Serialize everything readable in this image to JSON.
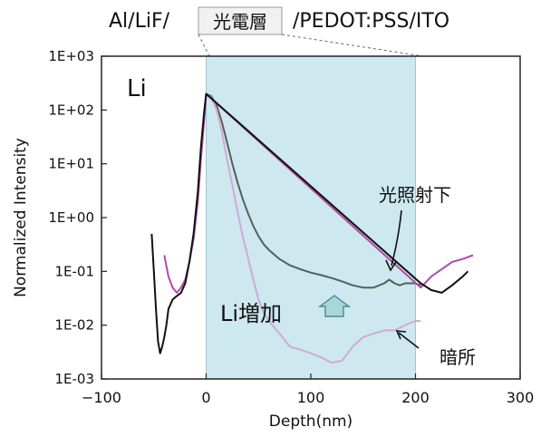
{
  "header": {
    "structure_prefix": "Al/LiF/",
    "active_layer": "光電層",
    "structure_suffix": "/PEDOT:PSS/ITO"
  },
  "chart_data": {
    "type": "line",
    "xlabel": "Depth(nm)",
    "ylabel": "Normalized Intensity",
    "xlim": [
      -100,
      300
    ],
    "ylim": [
      0.001,
      1000
    ],
    "yscale": "log",
    "x_ticks": [
      -100,
      0,
      100,
      200,
      300
    ],
    "y_ticks": [
      {
        "value": 1000,
        "label": "1E+03"
      },
      {
        "value": 100,
        "label": "1E+02"
      },
      {
        "value": 10,
        "label": "1E+01"
      },
      {
        "value": 1,
        "label": "1E+00"
      },
      {
        "value": 0.1,
        "label": "1E-01"
      },
      {
        "value": 0.01,
        "label": "1E-02"
      },
      {
        "value": 0.001,
        "label": "1E-03"
      }
    ],
    "element_label": "Li",
    "grid": false,
    "shaded_region": {
      "x": [
        0,
        200
      ],
      "color": "#cde8ef"
    },
    "series": [
      {
        "name": "光照射下",
        "color": "#555f57",
        "points": [
          [
            0,
            200
          ],
          [
            5,
            180
          ],
          [
            10,
            120
          ],
          [
            15,
            60
          ],
          [
            20,
            25
          ],
          [
            25,
            10
          ],
          [
            30,
            4.5
          ],
          [
            35,
            2.2
          ],
          [
            40,
            1.2
          ],
          [
            45,
            0.7
          ],
          [
            50,
            0.45
          ],
          [
            55,
            0.32
          ],
          [
            60,
            0.25
          ],
          [
            70,
            0.17
          ],
          [
            80,
            0.13
          ],
          [
            90,
            0.11
          ],
          [
            100,
            0.095
          ],
          [
            110,
            0.085
          ],
          [
            120,
            0.075
          ],
          [
            130,
            0.065
          ],
          [
            140,
            0.055
          ],
          [
            150,
            0.05
          ],
          [
            160,
            0.05
          ],
          [
            170,
            0.06
          ],
          [
            175,
            0.07
          ],
          [
            180,
            0.06
          ],
          [
            185,
            0.055
          ],
          [
            190,
            0.06
          ],
          [
            200,
            0.06
          ],
          [
            205,
            0.055
          ]
        ]
      },
      {
        "name": "暗所",
        "color": "#d0a9d6",
        "points": [
          [
            0,
            200
          ],
          [
            5,
            170
          ],
          [
            10,
            100
          ],
          [
            15,
            40
          ],
          [
            20,
            12
          ],
          [
            25,
            4
          ],
          [
            30,
            1.3
          ],
          [
            35,
            0.45
          ],
          [
            40,
            0.18
          ],
          [
            45,
            0.07
          ],
          [
            50,
            0.03
          ],
          [
            55,
            0.017
          ],
          [
            60,
            0.012
          ],
          [
            70,
            0.007
          ],
          [
            80,
            0.004
          ],
          [
            90,
            0.0035
          ],
          [
            100,
            0.003
          ],
          [
            110,
            0.0025
          ],
          [
            120,
            0.002
          ],
          [
            130,
            0.0022
          ],
          [
            140,
            0.004
          ],
          [
            150,
            0.006
          ],
          [
            160,
            0.007
          ],
          [
            170,
            0.008
          ],
          [
            180,
            0.008
          ],
          [
            190,
            0.01
          ],
          [
            200,
            0.012
          ],
          [
            205,
            0.012
          ]
        ]
      },
      {
        "name": "",
        "color": "#b14aa6",
        "points": [
          [
            -40,
            0.2
          ],
          [
            -36,
            0.08
          ],
          [
            -32,
            0.05
          ],
          [
            -28,
            0.04
          ],
          [
            -24,
            0.05
          ],
          [
            -20,
            0.07
          ],
          [
            -16,
            0.15
          ],
          [
            -12,
            0.4
          ],
          [
            -8,
            2
          ],
          [
            -5,
            12
          ],
          [
            -2,
            60
          ],
          [
            0,
            200
          ],
          [
            205,
            0.05
          ],
          [
            215,
            0.08
          ],
          [
            225,
            0.11
          ],
          [
            235,
            0.15
          ],
          [
            245,
            0.17
          ],
          [
            255,
            0.2
          ]
        ]
      },
      {
        "name": "",
        "color": "#111111",
        "points": [
          [
            -52,
            0.5
          ],
          [
            -50,
            0.1
          ],
          [
            -48,
            0.02
          ],
          [
            -46,
            0.005
          ],
          [
            -44,
            0.003
          ],
          [
            -42,
            0.004
          ],
          [
            -40,
            0.006
          ],
          [
            -38,
            0.01
          ],
          [
            -36,
            0.02
          ],
          [
            -32,
            0.03
          ],
          [
            -28,
            0.035
          ],
          [
            -24,
            0.04
          ],
          [
            -20,
            0.06
          ],
          [
            -16,
            0.15
          ],
          [
            -12,
            0.5
          ],
          [
            -8,
            3
          ],
          [
            -5,
            20
          ],
          [
            -2,
            90
          ],
          [
            0,
            200
          ],
          [
            205,
            0.06
          ],
          [
            215,
            0.045
          ],
          [
            225,
            0.04
          ],
          [
            235,
            0.055
          ],
          [
            245,
            0.08
          ],
          [
            250,
            0.1
          ]
        ]
      }
    ],
    "annotations": {
      "light": "光照射下",
      "dark": "暗所",
      "li_increase": "Li増加"
    }
  }
}
